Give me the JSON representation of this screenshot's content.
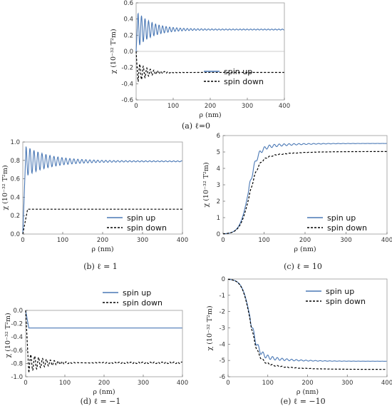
{
  "figure": {
    "panels": [
      {
        "id": "a",
        "caption": "(a) ℓ=0",
        "xlabel": "ρ (nm)",
        "ylabel": "χ (10⁻³² T²m)",
        "xticks": [
          "0",
          "100",
          "200",
          "300",
          "400"
        ],
        "yticks": [
          "0.6",
          "0.4",
          "0.2",
          "0.0",
          "-0.2",
          "-0.4",
          "-0.6"
        ],
        "legend": [
          "spin up",
          "spin down"
        ]
      },
      {
        "id": "b",
        "caption": "(b) ℓ = 1",
        "xlabel": "ρ (nm)",
        "ylabel": "χ (10⁻³² T²m)",
        "xticks": [
          "0",
          "100",
          "200",
          "300",
          "400"
        ],
        "yticks": [
          "1.0",
          "0.8",
          "0.6",
          "0.4",
          "0.2",
          "0.0"
        ],
        "legend": [
          "spin up",
          "spin down"
        ]
      },
      {
        "id": "c",
        "caption": "(c) ℓ = 10",
        "xlabel": "ρ (nm)",
        "ylabel": "χ (10⁻³² T²m)",
        "xticks": [
          "0",
          "100",
          "200",
          "300",
          "400"
        ],
        "yticks": [
          "6",
          "5",
          "4",
          "3",
          "2",
          "1",
          "0"
        ],
        "legend": [
          "spin up",
          "spin down"
        ]
      },
      {
        "id": "d",
        "caption": "(d) ℓ = −1",
        "xlabel": "ρ (nm)",
        "ylabel": "χ (10⁻³² T²m)",
        "xticks": [
          "0",
          "100",
          "200",
          "300",
          "400"
        ],
        "yticks": [
          "0.0",
          "-0.2",
          "-0.4",
          "-0.6",
          "-0.8",
          "-1.0"
        ],
        "legend": [
          "spin up",
          "spin down"
        ]
      },
      {
        "id": "e",
        "caption": "(e) ℓ = −10",
        "xlabel": "ρ (nm)",
        "ylabel": "χ (10⁻³² T²m)",
        "xticks": [
          "0",
          "100",
          "200",
          "300",
          "400"
        ],
        "yticks": [
          "0",
          "-1",
          "-2",
          "-3",
          "-4",
          "-5",
          "-6"
        ],
        "legend": [
          "spin up",
          "spin down"
        ]
      }
    ]
  },
  "colors": {
    "spin_up": "#4a78b5",
    "spin_down": "#000000",
    "zero_line": "#bbbbbb",
    "frame": "#999999"
  },
  "chart_data": [
    {
      "type": "line",
      "panel": "a",
      "xlim": [
        0,
        400
      ],
      "ylim": [
        -0.6,
        0.6
      ],
      "zero_line": true,
      "legend_position": "bottom-right",
      "series": [
        {
          "name": "spin up",
          "style": "solid",
          "x0": 5,
          "y0": 0.0,
          "steady": 0.27,
          "amplitude": 0.21,
          "period": 9.5,
          "decay": 40,
          "residual_ripple": 0.006
        },
        {
          "name": "spin down",
          "style": "dashed",
          "x0": 5,
          "y0": 0.0,
          "steady": -0.26,
          "amplitude": 0.12,
          "period": 9.5,
          "decay": 30,
          "residual_ripple": 0.0
        }
      ]
    },
    {
      "type": "line",
      "panel": "b",
      "xlim": [
        0,
        400
      ],
      "ylim": [
        0.0,
        1.0
      ],
      "zero_line": false,
      "legend_position": "bottom-right",
      "series": [
        {
          "name": "spin up",
          "style": "solid",
          "x0": 8,
          "y0": 0.0,
          "steady": 0.79,
          "amplitude": 0.16,
          "period": 10,
          "decay": 60,
          "residual_ripple": 0.005
        },
        {
          "name": "spin down",
          "style": "dashed",
          "x0": 12,
          "y0": 0.0,
          "steady": 0.27,
          "amplitude": 0.0,
          "period": 10,
          "decay": 30,
          "residual_ripple": 0.0
        }
      ]
    },
    {
      "type": "line",
      "panel": "c",
      "xlim": [
        0,
        400
      ],
      "ylim": [
        0,
        6
      ],
      "zero_line": false,
      "legend_position": "bottom-right",
      "series": [
        {
          "name": "spin up",
          "style": "solid",
          "x_onset": 38,
          "y_start": 0.0,
          "steady": 5.52,
          "k": 0.095,
          "x_mid": 62,
          "slow_tail": 0.35,
          "slow_tau": 60,
          "amplitude": 0.18,
          "period": 12,
          "decay": 80
        },
        {
          "name": "spin down",
          "style": "dashed",
          "x_onset": 38,
          "y_start": 0.0,
          "steady": 5.03,
          "k": 0.09,
          "x_mid": 63,
          "slow_tail": 0.6,
          "slow_tau": 60,
          "amplitude": 0.08,
          "period": 12,
          "decay": 60
        }
      ]
    },
    {
      "type": "line",
      "panel": "d",
      "xlim": [
        0,
        400
      ],
      "ylim": [
        -1.0,
        0.0
      ],
      "zero_line": false,
      "legend_position": "top-right",
      "series": [
        {
          "name": "spin up",
          "style": "solid",
          "x0": 8,
          "y0": 0.0,
          "steady": -0.265,
          "amplitude": 0.0,
          "period": 10,
          "decay": 30,
          "residual_ripple": 0.0
        },
        {
          "name": "spin down",
          "style": "dashed",
          "x0": 8,
          "y0": 0.0,
          "steady": -0.79,
          "amplitude": 0.15,
          "period": 10,
          "decay": 55,
          "residual_ripple": 0.012
        }
      ]
    },
    {
      "type": "line",
      "panel": "e",
      "xlim": [
        0,
        400
      ],
      "ylim": [
        -6,
        0
      ],
      "zero_line": false,
      "legend_position": "top-right",
      "series": [
        {
          "name": "spin up",
          "style": "solid",
          "x_onset": 38,
          "y_start": 0.0,
          "steady": -5.05,
          "k": 0.1,
          "x_mid": 55,
          "slow_tail": -0.45,
          "slow_tau": 60,
          "amplitude": 0.22,
          "period": 12,
          "decay": 70
        },
        {
          "name": "spin down",
          "style": "dashed",
          "x_onset": 38,
          "y_start": 0.0,
          "steady": -5.55,
          "k": 0.1,
          "x_mid": 55,
          "slow_tail": -0.65,
          "slow_tau": 60,
          "amplitude": 0.1,
          "period": 12,
          "decay": 60
        }
      ]
    }
  ]
}
